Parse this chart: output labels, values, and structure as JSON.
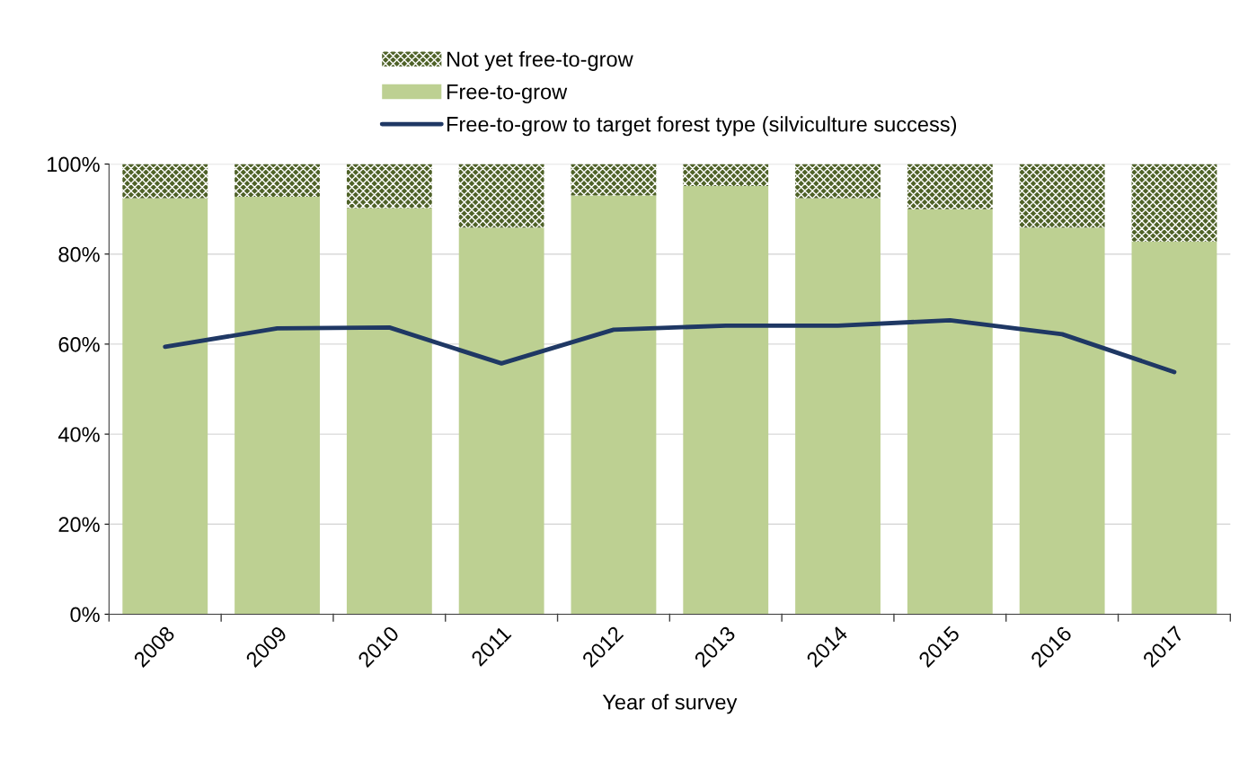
{
  "chart_data": {
    "type": "bar",
    "stacked": true,
    "xlabel": "Year of survey",
    "categories": [
      "2008",
      "2009",
      "2010",
      "2011",
      "2012",
      "2013",
      "2014",
      "2015",
      "2016",
      "2017"
    ],
    "series": [
      {
        "name": "Free-to-grow",
        "color": "#bdd092",
        "values": [
          92.4,
          92.7,
          90.2,
          85.9,
          93.0,
          95.1,
          92.4,
          90.0,
          85.9,
          82.8
        ]
      },
      {
        "name": "Not yet free-to-grow",
        "color": "#4f6228",
        "values": [
          7.6,
          7.3,
          9.8,
          14.1,
          7.0,
          4.9,
          7.6,
          10.0,
          14.1,
          17.2
        ]
      },
      {
        "name": "Free-to-grow to target forest type (silviculture success)",
        "type": "line",
        "color": "#1f3864",
        "values": [
          59.4,
          63.5,
          63.7,
          55.7,
          63.2,
          64.1,
          64.1,
          65.3,
          62.2,
          53.8
        ]
      }
    ],
    "ylim": [
      0,
      100
    ],
    "yticks": [
      {
        "value": 0,
        "label": "0%"
      },
      {
        "value": 20,
        "label": "20%"
      },
      {
        "value": 40,
        "label": "40%"
      },
      {
        "value": 60,
        "label": "60%"
      },
      {
        "value": 80,
        "label": "80%"
      },
      {
        "value": 100,
        "label": "100%"
      }
    ],
    "grid": "y",
    "legend": "top",
    "marker": "none",
    "line_style": "solid"
  }
}
